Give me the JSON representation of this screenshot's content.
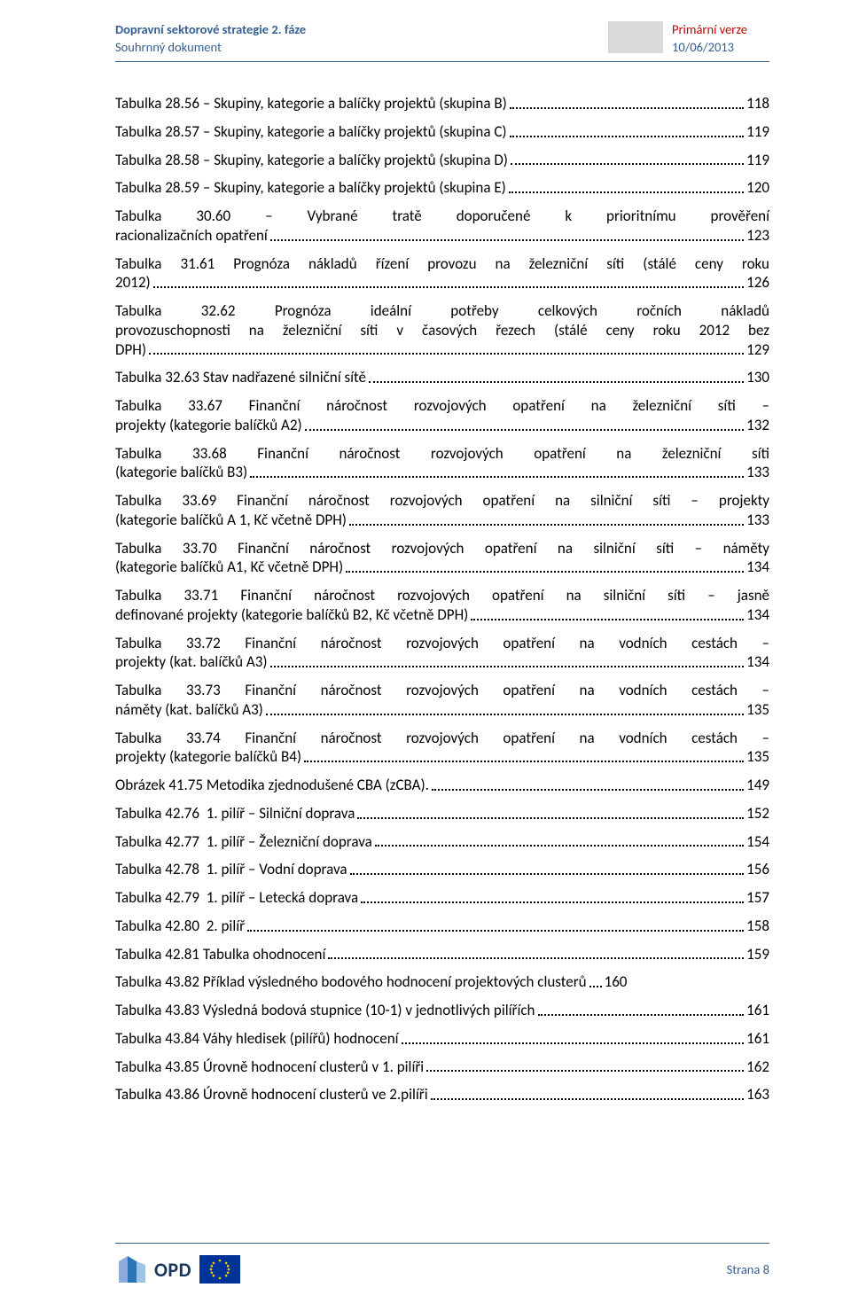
{
  "header": {
    "left_line1": "Dopravní sektorové strategie 2. fáze",
    "left_line2": "Souhrnný dokument",
    "right_line1": "Primární verze",
    "right_line2": "10/06/2013"
  },
  "colors": {
    "header_text": "#365f91",
    "header_red": "#c00000",
    "rule": "#365f91",
    "body_text": "#000000",
    "box_gray": "#d9d9d9",
    "eu_blue": "#003399",
    "eu_gold": "#ffcc00",
    "opd_blue": "#17365d"
  },
  "toc": [
    {
      "lines": [
        "Tabulka 28.56 – Skupiny, kategorie a balíčky projektů (skupina B)"
      ],
      "page": "118"
    },
    {
      "lines": [
        "Tabulka 28.57 – Skupiny, kategorie a balíčky projektů (skupina C)"
      ],
      "page": "119"
    },
    {
      "lines": [
        "Tabulka 28.58 – Skupiny, kategorie a balíčky projektů (skupina D)"
      ],
      "page": "119"
    },
    {
      "lines": [
        "Tabulka 28.59 – Skupiny, kategorie a balíčky projektů (skupina E)"
      ],
      "page": "120"
    },
    {
      "lines": [
        "Tabulka 30.60 – Vybrané tratě doporučené k prioritnímu prověření",
        "racionalizačních opatření"
      ],
      "page": "123"
    },
    {
      "lines": [
        "Tabulka 31.61 Prognóza nákladů řízení provozu na železniční síti (stálé ceny roku",
        "2012)"
      ],
      "page": "126"
    },
    {
      "lines": [
        "Tabulka 32.62 Prognóza ideální potřeby celkových ročních nákladů",
        "provozuschopnosti na železniční síti v časových řezech (stálé ceny roku 2012 bez",
        "DPH)"
      ],
      "page": "129"
    },
    {
      "lines": [
        "Tabulka 32.63 Stav nadřazené silniční sítě"
      ],
      "page": "130"
    },
    {
      "lines": [
        "Tabulka 33.67 Finanční náročnost rozvojových opatření na železniční síti –",
        "projekty (kategorie balíčků A2)"
      ],
      "page": "132"
    },
    {
      "lines": [
        "Tabulka 33.68 Finanční náročnost rozvojových opatření na železniční síti",
        "(kategorie balíčků B3)"
      ],
      "page": "133"
    },
    {
      "lines": [
        "Tabulka 33.69 Finanční náročnost rozvojových opatření na silniční síti – projekty",
        "(kategorie balíčků A 1, Kč včetně DPH)"
      ],
      "page": "133"
    },
    {
      "lines": [
        "Tabulka 33.70 Finanční náročnost rozvojových opatření na silniční síti – náměty",
        "(kategorie balíčků A1, Kč včetně DPH)"
      ],
      "page": "134"
    },
    {
      "lines": [
        "Tabulka 33.71 Finanční náročnost rozvojových opatření na silniční síti – jasně",
        "definované projekty (kategorie balíčků B2, Kč včetně DPH)"
      ],
      "page": "134"
    },
    {
      "lines": [
        "Tabulka 33.72 Finanční náročnost rozvojových opatření na vodních cestách –",
        "projekty (kat. balíčků A3)"
      ],
      "page": "134"
    },
    {
      "lines": [
        "Tabulka 33.73 Finanční náročnost rozvojových opatření na vodních cestách –",
        "náměty (kat. balíčků A3)"
      ],
      "page": "135"
    },
    {
      "lines": [
        "Tabulka 33.74 Finanční náročnost rozvojových opatření na vodních cestách –",
        "projekty (kategorie balíčků B4)"
      ],
      "page": "135"
    },
    {
      "lines": [
        "Obrázek 41.75 Metodika zjednodušené CBA (zCBA)."
      ],
      "page": "149"
    },
    {
      "lines": [
        "Tabulka 42.76  1. pilíř – Silniční doprava"
      ],
      "page": "152"
    },
    {
      "lines": [
        "Tabulka 42.77  1. pilíř – Železniční doprava"
      ],
      "page": "154"
    },
    {
      "lines": [
        "Tabulka 42.78  1. pilíř – Vodní doprava"
      ],
      "page": "156"
    },
    {
      "lines": [
        "Tabulka 42.79  1. pilíř – Letecká doprava"
      ],
      "page": "157"
    },
    {
      "lines": [
        "Tabulka 42.80  2. pilíř"
      ],
      "page": "158"
    },
    {
      "lines": [
        "Tabulka 42.81 Tabulka ohodnocení"
      ],
      "page": "159"
    },
    {
      "lines": [
        "Tabulka 43.82 Příklad výsledného bodového hodnocení projektových clusterů"
      ],
      "page": "160",
      "leader_short": true
    },
    {
      "lines": [
        "Tabulka 43.83 Výsledná bodová stupnice (10-1) v jednotlivých pilířích"
      ],
      "page": "161"
    },
    {
      "lines": [
        "Tabulka 43.84 Váhy hledisek (pilířů) hodnocení"
      ],
      "page": "161"
    },
    {
      "lines": [
        "Tabulka 43.85 Úrovně hodnocení clusterů v 1. pilíři"
      ],
      "page": "162"
    },
    {
      "lines": [
        "Tabulka 43.86 Úrovně hodnocení clusterů ve 2.pilíři"
      ],
      "page": "163"
    }
  ],
  "footer": {
    "opd_label": "OPD",
    "page_label": "Strana 8"
  }
}
